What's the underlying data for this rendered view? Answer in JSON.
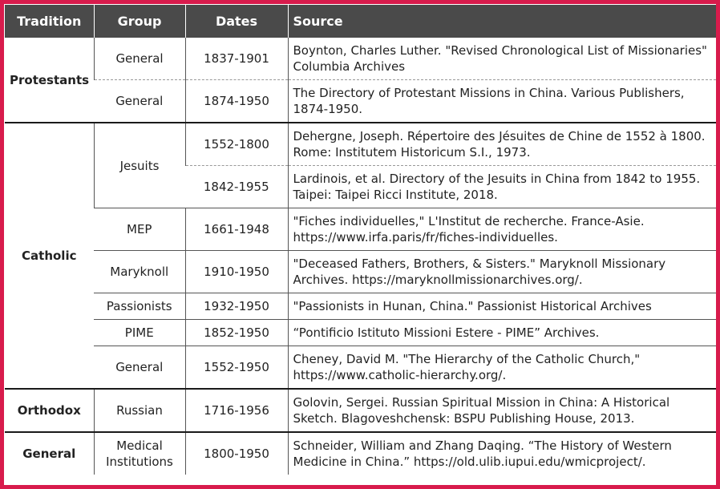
{
  "header": {
    "columns": [
      "Tradition",
      "Group",
      "Dates",
      "Source"
    ]
  },
  "traditions": [
    {
      "name": "Protestants",
      "dashed_group_dividers": true,
      "groups": [
        {
          "name": "General",
          "entries": [
            {
              "dates": "1837-1901",
              "source": "Boynton, Charles Luther. \"Revised Chronological List of Missionaries\" Columbia Archives"
            }
          ]
        },
        {
          "name": "General",
          "entries": [
            {
              "dates": "1874-1950",
              "source": "The Directory of Protestant Missions in China. Various Publishers, 1874-1950."
            }
          ]
        }
      ]
    },
    {
      "name": "Catholic",
      "groups": [
        {
          "name": "Jesuits",
          "entries": [
            {
              "dates": "1552-1800",
              "source": "Dehergne, Joseph. Répertoire des Jésuites de Chine de 1552 à 1800. Rome: Institutem Historicum S.I., 1973."
            },
            {
              "dates": "1842-1955",
              "source": "Lardinois, et al. Directory of the Jesuits in China from 1842 to 1955. Taipei: Taipei Ricci Institute, 2018."
            }
          ]
        },
        {
          "name": "MEP",
          "entries": [
            {
              "dates": "1661-1948",
              "source": "\"Fiches individuelles,\" L'Institut de recherche. France-Asie. https://www.irfa.paris/fr/fiches-individuelles."
            }
          ]
        },
        {
          "name": "Maryknoll",
          "entries": [
            {
              "dates": "1910-1950",
              "source": "\"Deceased Fathers, Brothers, & Sisters.\" Maryknoll Missionary Archives. https://maryknollmissionarchives.org/."
            }
          ]
        },
        {
          "name": "Passionists",
          "entries": [
            {
              "dates": "1932-1950",
              "source": "\"Passionists in Hunan, China.\" Passionist Historical Archives"
            }
          ]
        },
        {
          "name": "PIME",
          "entries": [
            {
              "dates": "1852-1950",
              "source": "“Pontificio Istituto Missioni Estere - PIME” Archives."
            }
          ]
        },
        {
          "name": "General",
          "entries": [
            {
              "dates": "1552-1950",
              "source": "Cheney, David M. \"The Hierarchy of the Catholic Church,\" https://www.catholic-hierarchy.org/."
            }
          ]
        }
      ]
    },
    {
      "name": "Orthodox",
      "groups": [
        {
          "name": "Russian",
          "entries": [
            {
              "dates": "1716-1956",
              "source": "Golovin, Sergei. Russian Spiritual Mission in China: A Historical Sketch. Blagoveshchensk: BSPU Publishing House, 2013."
            }
          ]
        }
      ]
    },
    {
      "name": "General",
      "groups": [
        {
          "name": "Medical Institutions",
          "entries": [
            {
              "dates": "1800-1950",
              "source": "Schneider, William  and Zhang Daqing. “The History of Western Medicine in China.” https://old.ulib.iupui.edu/wmicproject/."
            }
          ]
        }
      ]
    }
  ]
}
